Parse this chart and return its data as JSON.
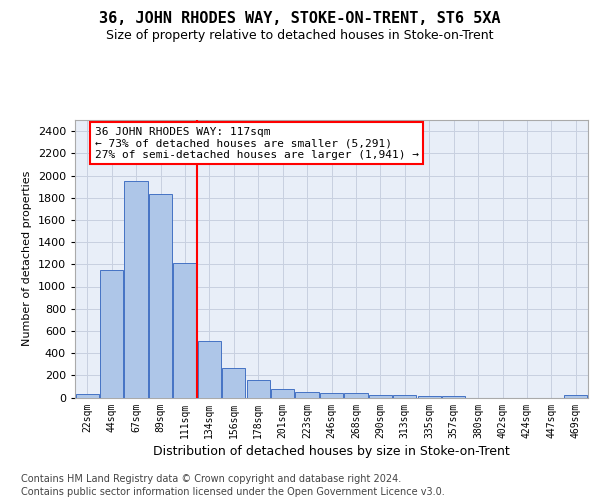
{
  "title": "36, JOHN RHODES WAY, STOKE-ON-TRENT, ST6 5XA",
  "subtitle": "Size of property relative to detached houses in Stoke-on-Trent",
  "xlabel": "Distribution of detached houses by size in Stoke-on-Trent",
  "ylabel": "Number of detached properties",
  "categories": [
    "22sqm",
    "44sqm",
    "67sqm",
    "89sqm",
    "111sqm",
    "134sqm",
    "156sqm",
    "178sqm",
    "201sqm",
    "223sqm",
    "246sqm",
    "268sqm",
    "290sqm",
    "313sqm",
    "335sqm",
    "357sqm",
    "380sqm",
    "402sqm",
    "424sqm",
    "447sqm",
    "469sqm"
  ],
  "values": [
    30,
    1150,
    1950,
    1830,
    1210,
    510,
    270,
    155,
    80,
    50,
    45,
    40,
    20,
    25,
    15,
    10,
    0,
    0,
    0,
    0,
    20
  ],
  "bar_color": "#aec6e8",
  "bar_edge_color": "#4472c4",
  "grid_color": "#c8d0e0",
  "bg_color": "#e8eef8",
  "property_line_x": 4.5,
  "annotation_line1": "36 JOHN RHODES WAY: 117sqm",
  "annotation_line2": "← 73% of detached houses are smaller (5,291)",
  "annotation_line3": "27% of semi-detached houses are larger (1,941) →",
  "footer1": "Contains HM Land Registry data © Crown copyright and database right 2024.",
  "footer2": "Contains public sector information licensed under the Open Government Licence v3.0.",
  "ylim": [
    0,
    2500
  ],
  "yticks": [
    0,
    200,
    400,
    600,
    800,
    1000,
    1200,
    1400,
    1600,
    1800,
    2000,
    2200,
    2400
  ],
  "title_fontsize": 11,
  "subtitle_fontsize": 9,
  "ylabel_fontsize": 8,
  "xlabel_fontsize": 9,
  "ytick_fontsize": 8,
  "xtick_fontsize": 7,
  "annot_fontsize": 8,
  "footer_fontsize": 7
}
